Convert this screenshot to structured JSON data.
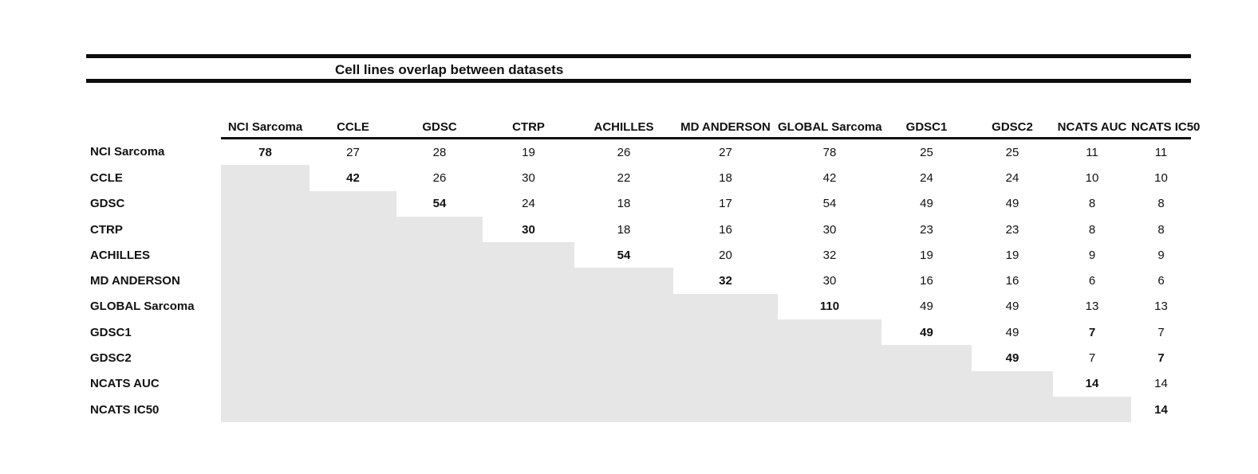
{
  "title": "Cell lines overlap between datasets",
  "colors": {
    "background": "#ffffff",
    "text": "#111111",
    "rule": "#0d0d0d",
    "shaded_cell": "#e6e6e6"
  },
  "chart_data": {
    "type": "table",
    "title": "Cell lines overlap between datasets",
    "columns": [
      "NCI Sarcoma",
      "CCLE",
      "GDSC",
      "CTRP",
      "ACHILLES",
      "MD ANDERSON",
      "GLOBAL Sarcoma",
      "GDSC1",
      "GDSC2",
      "NCATS AUC",
      "NCATS IC50"
    ],
    "rows": [
      {
        "label": "NCI Sarcoma",
        "values": [
          "78",
          "27",
          "28",
          "19",
          "26",
          "27",
          "78",
          "25",
          "25",
          "11",
          "11"
        ],
        "bold_cols": [
          0
        ]
      },
      {
        "label": "CCLE",
        "values": [
          null,
          "42",
          "26",
          "30",
          "22",
          "18",
          "42",
          "24",
          "24",
          "10",
          "10"
        ],
        "bold_cols": [
          1
        ]
      },
      {
        "label": "GDSC",
        "values": [
          null,
          null,
          "54",
          "24",
          "18",
          "17",
          "54",
          "49",
          "49",
          "8",
          "8"
        ],
        "bold_cols": [
          2
        ]
      },
      {
        "label": "CTRP",
        "values": [
          null,
          null,
          null,
          "30",
          "18",
          "16",
          "30",
          "23",
          "23",
          "8",
          "8"
        ],
        "bold_cols": [
          3
        ]
      },
      {
        "label": "ACHILLES",
        "values": [
          null,
          null,
          null,
          null,
          "54",
          "20",
          "32",
          "19",
          "19",
          "9",
          "9"
        ],
        "bold_cols": [
          4
        ]
      },
      {
        "label": "MD ANDERSON",
        "values": [
          null,
          null,
          null,
          null,
          null,
          "32",
          "30",
          "16",
          "16",
          "6",
          "6"
        ],
        "bold_cols": [
          5
        ]
      },
      {
        "label": "GLOBAL Sarcoma",
        "values": [
          null,
          null,
          null,
          null,
          null,
          null,
          "110",
          "49",
          "49",
          "13",
          "13"
        ],
        "bold_cols": [
          6
        ]
      },
      {
        "label": "GDSC1",
        "values": [
          null,
          null,
          null,
          null,
          null,
          null,
          null,
          "49",
          "49",
          "7",
          "7"
        ],
        "bold_cols": [
          7,
          9
        ]
      },
      {
        "label": "GDSC2",
        "values": [
          null,
          null,
          null,
          null,
          null,
          null,
          null,
          null,
          "49",
          "7",
          "7"
        ],
        "bold_cols": [
          8,
          10
        ]
      },
      {
        "label": "NCATS AUC",
        "values": [
          null,
          null,
          null,
          null,
          null,
          null,
          null,
          null,
          null,
          "14",
          "14"
        ],
        "bold_cols": [
          9
        ]
      },
      {
        "label": "NCATS IC50",
        "values": [
          null,
          null,
          null,
          null,
          null,
          null,
          null,
          null,
          null,
          null,
          "14"
        ],
        "bold_cols": [
          10
        ]
      }
    ],
    "layout_hints": {
      "shape": "upper-triangular matrix",
      "diagonal_style": "bold",
      "lower_triangle": "shaded empty cells",
      "header_rule": "on",
      "title_rules": "double horizontal rules above table"
    }
  }
}
